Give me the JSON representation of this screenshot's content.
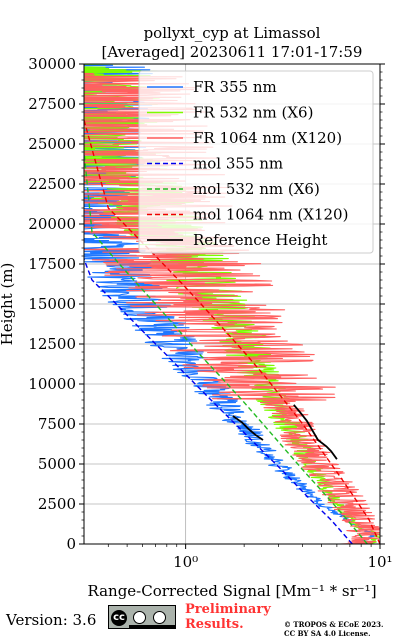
{
  "chart_data": {
    "type": "line",
    "title_line1": "pollyxt_cyp at Limassol",
    "title_line2": "[Averaged] 20230611 17:01-17:59",
    "xlabel": "Range-Corrected Signal [Mm⁻¹ * sr⁻¹]",
    "ylabel": "Height (m)",
    "xscale": "log",
    "xlim": [
      0.3,
      10
    ],
    "ylim": [
      0,
      30000
    ],
    "xtick_labels": [
      "10⁰",
      "10¹"
    ],
    "xtick_values": [
      1,
      10
    ],
    "ytick_labels": [
      "0",
      "2500",
      "5000",
      "7500",
      "10000",
      "12500",
      "15000",
      "17500",
      "20000",
      "22500",
      "25000",
      "27500",
      "30000"
    ],
    "ytick_values": [
      0,
      2500,
      5000,
      7500,
      10000,
      12500,
      15000,
      17500,
      20000,
      22500,
      25000,
      27500,
      30000
    ],
    "grid": true,
    "legend_position": "top-right",
    "series": [
      {
        "name": "FR 355 nm",
        "color": "#1f77ff",
        "style": "solid-noisy",
        "x": [
          7.5,
          9.5,
          8.0,
          5.0,
          3.6,
          2.7,
          2.1,
          1.6,
          1.3,
          1.0,
          0.8,
          0.64,
          0.52,
          0.43,
          0.36,
          0.31,
          0.3
        ],
        "y": [
          0,
          600,
          1000,
          2500,
          4000,
          5500,
          7000,
          8500,
          10000,
          11500,
          13000,
          14500,
          16000,
          17500,
          19000,
          20500,
          30000
        ]
      },
      {
        "name": "FR 532 nm (X6)",
        "color": "#7cfc00",
        "style": "solid-noisy",
        "x": [
          9.0,
          10.0,
          8.0,
          6.0,
          5.0,
          4.2,
          3.5,
          3.0,
          2.6,
          2.2,
          1.9,
          1.55,
          1.3,
          1.1,
          0.9,
          0.7,
          0.55,
          0.42,
          0.33,
          0.3
        ],
        "y": [
          0,
          600,
          1000,
          2500,
          4000,
          5500,
          7000,
          8500,
          10000,
          11500,
          13000,
          14500,
          16000,
          17500,
          19000,
          20500,
          22000,
          23500,
          25000,
          30000
        ]
      },
      {
        "name": "FR 1064 nm (X120)",
        "color": "#ff6060",
        "style": "solid-very-noisy",
        "x": [
          7.0,
          9.0,
          8.5,
          7.0,
          5.5,
          4.5,
          3.8,
          3.2,
          2.6,
          2.1,
          1.7,
          1.35,
          1.1,
          0.9,
          0.75,
          0.6,
          0.5,
          0.42,
          0.36,
          0.32
        ],
        "y": [
          0,
          500,
          1000,
          2500,
          4000,
          5500,
          7000,
          8500,
          10000,
          11500,
          13000,
          14500,
          16000,
          17500,
          19000,
          21000,
          23000,
          25000,
          27000,
          29500
        ]
      },
      {
        "name": "mol 355 nm",
        "color": "#0000ee",
        "style": "dashed",
        "x": [
          7.2,
          5.6,
          4.2,
          3.2,
          2.4,
          1.8,
          1.35,
          1.02,
          0.77,
          0.58,
          0.44,
          0.33,
          0.3
        ],
        "y": [
          0,
          1500,
          3000,
          4500,
          6000,
          7500,
          9000,
          10500,
          12000,
          13500,
          15000,
          16500,
          17800
        ]
      },
      {
        "name": "mol 532 nm (X6)",
        "color": "#22bb22",
        "style": "dashed",
        "x": [
          8.6,
          6.8,
          5.3,
          4.1,
          3.2,
          2.5,
          1.95,
          1.5,
          1.15,
          0.9,
          0.7,
          0.54,
          0.42,
          0.33,
          0.3
        ],
        "y": [
          0,
          1500,
          3000,
          4500,
          6000,
          7500,
          9000,
          10500,
          12000,
          13500,
          15000,
          16500,
          18000,
          19500,
          24500
        ]
      },
      {
        "name": "mol 1064 nm (X120)",
        "color": "#ee0000",
        "style": "dashed",
        "x": [
          10.0,
          8.8,
          7.3,
          6.0,
          4.9,
          4.0,
          3.2,
          2.55,
          2.0,
          1.55,
          1.2,
          0.92,
          0.7,
          0.53,
          0.4,
          0.3
        ],
        "y": [
          0,
          1500,
          3000,
          4500,
          6000,
          7500,
          9000,
          10500,
          12000,
          13500,
          15000,
          16500,
          18000,
          19500,
          21000,
          26500
        ]
      },
      {
        "name": "Reference Height",
        "color": "#000000",
        "style": "solid-thick",
        "x": [
          1.75,
          1.95,
          2.1,
          2.3,
          2.5
        ],
        "y": [
          8000,
          7600,
          7200,
          6800,
          6500
        ],
        "x2": [
          3.6,
          3.9,
          4.2,
          4.8,
          5.3,
          5.6,
          6.0
        ],
        "y2": [
          8700,
          8200,
          7700,
          6500,
          6100,
          5800,
          5300
        ]
      }
    ]
  },
  "footer": {
    "version": "Version: 3.6",
    "license_badge_text": "cc",
    "preliminary_line1": "Preliminary",
    "preliminary_line2": "Results.",
    "copyright_line1": "© TROPOS & ECoE 2023.",
    "copyright_line2": "CC BY SA 4.0 License."
  }
}
